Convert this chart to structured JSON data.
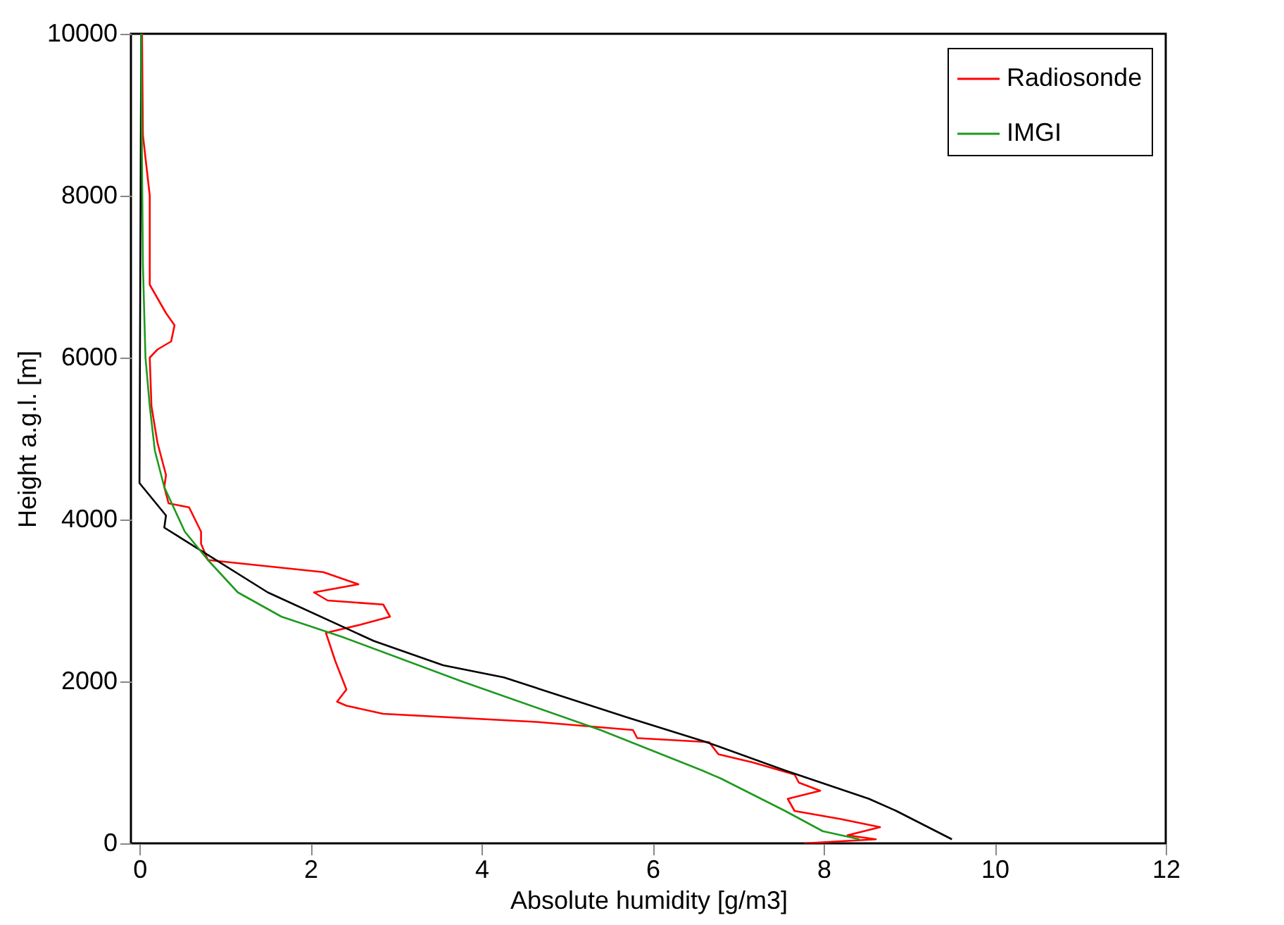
{
  "chart_data": {
    "type": "line",
    "xlabel": "Absolute humidity [g/m3]",
    "ylabel": "Height a.g.l. [m]",
    "xlim": [
      -0.1,
      12
    ],
    "xticks": [
      0,
      2,
      4,
      6,
      8,
      10,
      12
    ],
    "ylim": [
      0,
      10000
    ],
    "yticks": [
      0,
      2000,
      4000,
      6000,
      8000,
      10000
    ],
    "grid": false,
    "legend": "top right",
    "marker": "none",
    "line_style": "solid",
    "series": [
      {
        "name": "Radiosonde",
        "color": "#ff0000",
        "x": [
          0.03,
          0.04,
          0.12,
          0.12,
          0.31,
          0.41,
          0.37,
          0.21,
          0.12,
          0.14,
          0.21,
          0.31,
          0.29,
          0.34,
          0.58,
          0.72,
          0.72,
          0.8,
          2.15,
          2.56,
          2.04,
          2.2,
          2.85,
          2.93,
          2.58,
          2.18,
          2.29,
          2.42,
          2.31,
          2.42,
          2.85,
          4.64,
          5.77,
          5.82,
          6.66,
          6.77,
          7.17,
          7.66,
          7.71,
          7.96,
          7.58,
          7.66,
          8.2,
          8.66,
          8.28,
          8.61,
          7.77
        ],
        "values": [
          10000,
          8750,
          8000,
          6900,
          6550,
          6400,
          6200,
          6100,
          6000,
          5400,
          4950,
          4550,
          4400,
          4200,
          4150,
          3850,
          3700,
          3500,
          3350,
          3200,
          3100,
          3000,
          2950,
          2800,
          2700,
          2600,
          2250,
          1900,
          1750,
          1700,
          1600,
          1500,
          1400,
          1300,
          1250,
          1100,
          1000,
          850,
          750,
          650,
          550,
          400,
          300,
          200,
          100,
          50,
          0
        ]
      },
      {
        "color": "#000000",
        "x": [
          0.02,
          0.0,
          0.31,
          0.29,
          1.5,
          2.74,
          3.55,
          4.26,
          5.72,
          6.63,
          7.55,
          8.53,
          8.85,
          9.5
        ],
        "values": [
          10000,
          4450,
          4050,
          3900,
          3100,
          2500,
          2200,
          2050,
          1550,
          1250,
          900,
          550,
          400,
          50
        ]
      },
      {
        "name": "IMGI",
        "color": "#1e9a1e",
        "x": [
          0.02,
          0.02,
          0.04,
          0.07,
          0.12,
          0.18,
          0.29,
          0.53,
          0.8,
          1.15,
          1.66,
          2.37,
          3.77,
          5.39,
          6.58,
          6.8,
          7.55,
          7.99,
          8.42
        ],
        "values": [
          10000,
          9600,
          7150,
          6000,
          5400,
          4850,
          4400,
          3850,
          3500,
          3100,
          2800,
          2550,
          2000,
          1400,
          900,
          800,
          400,
          150,
          50
        ]
      }
    ]
  }
}
